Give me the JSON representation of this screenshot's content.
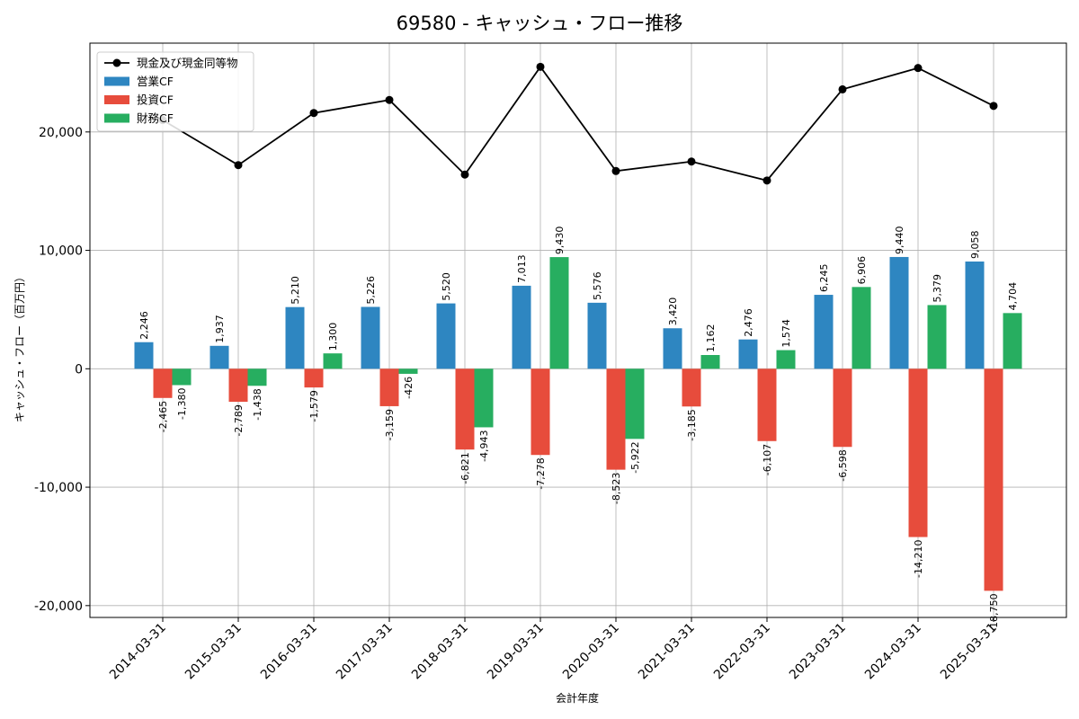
{
  "chart_data": {
    "type": "bar",
    "title": "69580 - キャッシュ・フロー推移",
    "xlabel": "会計年度",
    "ylabel": "キャッシュ・フロー（百万円）",
    "ylim": [
      -21000,
      27500
    ],
    "yticks": [
      -20000,
      -10000,
      0,
      10000,
      20000
    ],
    "ytick_labels": [
      "-20,000",
      "-10,000",
      "0",
      "10,000",
      "20,000"
    ],
    "grid": true,
    "legend_position": "top-left",
    "categories": [
      "2014-03-31",
      "2015-03-31",
      "2016-03-31",
      "2017-03-31",
      "2018-03-31",
      "2019-03-31",
      "2020-03-31",
      "2021-03-31",
      "2022-03-31",
      "2023-03-31",
      "2024-03-31",
      "2025-03-31"
    ],
    "series": [
      {
        "name": "営業CF",
        "kind": "bar",
        "color": "#2e86c1",
        "values": [
          2246,
          1937,
          5210,
          5226,
          5520,
          7013,
          5576,
          3420,
          2476,
          6245,
          9440,
          9058
        ],
        "labels": [
          "2,246",
          "1,937",
          "5,210",
          "5,226",
          "5,520",
          "7,013",
          "5,576",
          "3,420",
          "2,476",
          "6,245",
          "9,440",
          "9,058"
        ]
      },
      {
        "name": "投資CF",
        "kind": "bar",
        "color": "#e74c3c",
        "values": [
          -2465,
          -2789,
          -1579,
          -3159,
          -6821,
          -7278,
          -8523,
          -3185,
          -6107,
          -6598,
          -14210,
          -18750
        ],
        "labels": [
          "-2,465",
          "-2,789",
          "-1,579",
          "-3,159",
          "-6,821",
          "-7,278",
          "-8,523",
          "-3,185",
          "-6,107",
          "-6,598",
          "-14,210",
          "-18,750"
        ]
      },
      {
        "name": "財務CF",
        "kind": "bar",
        "color": "#27ae60",
        "values": [
          -1380,
          -1438,
          1300,
          -426,
          -4943,
          9430,
          -5922,
          1162,
          1574,
          6906,
          5379,
          4704
        ],
        "labels": [
          "-1,380",
          "-1,438",
          "1,300",
          "-426",
          "-4,943",
          "9,430",
          "-5,922",
          "1,162",
          "1,574",
          "6,906",
          "5,379",
          "4,704"
        ]
      },
      {
        "name": "現金及び現金同等物",
        "kind": "line",
        "color": "#000000",
        "values": [
          21000,
          17200,
          21600,
          22700,
          16400,
          25500,
          16700,
          17500,
          15900,
          23600,
          25400,
          22200
        ]
      }
    ]
  }
}
